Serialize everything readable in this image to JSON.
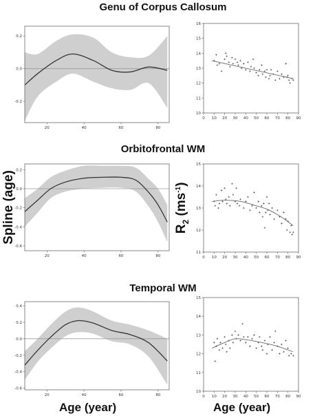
{
  "titles": [
    "Genu of Corpus Callosum",
    "Orbitofrontal WM",
    "Temporal WM"
  ],
  "ylabel_left": "Spline  (age)",
  "ylabel_right_base": "R",
  "ylabel_right_sub": "2",
  "ylabel_right_unit_open": " (ms",
  "ylabel_right_unit_sup": "-1",
  "ylabel_right_unit_close": ")",
  "xlabel_left": "Age (year)",
  "xlabel_right": "Age (year)",
  "colors": {
    "band": "#cfcfcf",
    "curve": "#333333",
    "refline": "#9a9a9a",
    "points": "#555555"
  },
  "chart_data": [
    {
      "type": "line",
      "panel": "spline",
      "xlim": [
        8,
        86
      ],
      "ylim": [
        -0.33,
        0.26
      ],
      "xticks": [
        20,
        40,
        60,
        80
      ],
      "yticks": [
        -0.2,
        0.0,
        0.2
      ],
      "ytick_labels": [
        "-0.2",
        "0.0",
        "0.2"
      ],
      "reference_y": 0,
      "x": [
        8,
        15,
        25,
        34,
        45,
        55,
        65,
        75,
        85
      ],
      "y": [
        -0.1,
        -0.03,
        0.05,
        0.09,
        0.05,
        -0.01,
        -0.02,
        0.01,
        -0.01
      ],
      "upper": [
        0.1,
        0.09,
        0.17,
        0.21,
        0.19,
        0.1,
        0.07,
        0.08,
        0.2
      ],
      "lower": [
        -0.32,
        -0.17,
        -0.08,
        -0.03,
        -0.08,
        -0.12,
        -0.13,
        -0.09,
        -0.24
      ]
    },
    {
      "type": "scatter",
      "panel": "r2",
      "xlim": [
        0,
        90
      ],
      "ylim": [
        10,
        16
      ],
      "xticks": [
        0,
        10,
        20,
        30,
        40,
        50,
        60,
        70,
        80,
        90
      ],
      "yticks": [
        10,
        11,
        12,
        13,
        14,
        15,
        16
      ],
      "fit_x": [
        8,
        85
      ],
      "fit_y": [
        13.5,
        12.3
      ],
      "points": [
        [
          10,
          13.5
        ],
        [
          12,
          13.9
        ],
        [
          13,
          13.2
        ],
        [
          15,
          13.3
        ],
        [
          17,
          12.8
        ],
        [
          20,
          13.6
        ],
        [
          21,
          14.0
        ],
        [
          22,
          13.8
        ],
        [
          24,
          13.4
        ],
        [
          25,
          13.1
        ],
        [
          27,
          13.7
        ],
        [
          28,
          13.3
        ],
        [
          30,
          13.6
        ],
        [
          32,
          13.4
        ],
        [
          33,
          13.2
        ],
        [
          35,
          13.5
        ],
        [
          36,
          13.0
        ],
        [
          38,
          13.3
        ],
        [
          40,
          12.9
        ],
        [
          42,
          13.4
        ],
        [
          44,
          12.8
        ],
        [
          45,
          13.1
        ],
        [
          47,
          13.6
        ],
        [
          48,
          13.0
        ],
        [
          50,
          12.7
        ],
        [
          52,
          12.5
        ],
        [
          53,
          12.9
        ],
        [
          55,
          13.2
        ],
        [
          56,
          12.6
        ],
        [
          58,
          12.8
        ],
        [
          59,
          12.4
        ],
        [
          60,
          12.9
        ],
        [
          62,
          12.3
        ],
        [
          63,
          12.5
        ],
        [
          64,
          12.9
        ],
        [
          66,
          12.6
        ],
        [
          68,
          12.2
        ],
        [
          70,
          12.8
        ],
        [
          72,
          12.3
        ],
        [
          74,
          12.6
        ],
        [
          76,
          12.4
        ],
        [
          78,
          13.3
        ],
        [
          79,
          12.4
        ],
        [
          80,
          12.5
        ],
        [
          81,
          12.2
        ],
        [
          82,
          12.0
        ],
        [
          84,
          12.3
        ],
        [
          85,
          12.2
        ]
      ]
    },
    {
      "type": "line",
      "panel": "spline",
      "xlim": [
        8,
        86
      ],
      "ylim": [
        -0.65,
        0.26
      ],
      "xticks": [
        20,
        40,
        60,
        80
      ],
      "yticks": [
        -0.6,
        -0.4,
        -0.2,
        0.0,
        0.2
      ],
      "ytick_labels": [
        "-0.6",
        "-0.4",
        "-0.2",
        "0.0",
        "0.2"
      ],
      "reference_y": 0,
      "x": [
        8,
        15,
        22,
        30,
        40,
        50,
        60,
        68,
        75,
        80,
        85
      ],
      "y": [
        -0.24,
        -0.12,
        0.0,
        0.07,
        0.11,
        0.12,
        0.12,
        0.09,
        -0.04,
        -0.17,
        -0.35
      ],
      "upper": [
        -0.1,
        0.0,
        0.12,
        0.19,
        0.24,
        0.24,
        0.24,
        0.22,
        0.1,
        0.0,
        -0.17
      ],
      "lower": [
        -0.4,
        -0.25,
        -0.1,
        -0.03,
        0.0,
        0.01,
        0.01,
        -0.03,
        -0.19,
        -0.35,
        -0.56
      ]
    },
    {
      "type": "scatter",
      "panel": "r2",
      "xlim": [
        0,
        90
      ],
      "ylim": [
        11,
        15
      ],
      "xticks": [
        0,
        10,
        20,
        30,
        40,
        50,
        60,
        70,
        80,
        90
      ],
      "yticks": [
        11,
        12,
        13,
        14,
        15
      ],
      "fit_x": [
        8,
        85
      ],
      "fit_y_curve": [
        [
          8,
          13.3
        ],
        [
          20,
          13.35
        ],
        [
          35,
          13.3
        ],
        [
          50,
          13.1
        ],
        [
          60,
          12.95
        ],
        [
          70,
          12.7
        ],
        [
          78,
          12.45
        ],
        [
          85,
          12.2
        ]
      ],
      "points": [
        [
          10,
          13.3
        ],
        [
          11,
          13.1
        ],
        [
          12,
          13.6
        ],
        [
          14,
          13.0
        ],
        [
          15,
          13.2
        ],
        [
          17,
          13.8
        ],
        [
          18,
          13.3
        ],
        [
          20,
          13.9
        ],
        [
          21,
          13.4
        ],
        [
          22,
          13.2
        ],
        [
          24,
          13.5
        ],
        [
          25,
          13.1
        ],
        [
          27,
          14.1
        ],
        [
          28,
          13.6
        ],
        [
          30,
          13.3
        ],
        [
          31,
          13.9
        ],
        [
          32,
          13.2
        ],
        [
          34,
          13.1
        ],
        [
          35,
          13.4
        ],
        [
          38,
          13.0
        ],
        [
          40,
          13.3
        ],
        [
          42,
          13.5
        ],
        [
          44,
          12.9
        ],
        [
          46,
          13.1
        ],
        [
          48,
          13.7
        ],
        [
          50,
          13.0
        ],
        [
          52,
          13.3
        ],
        [
          53,
          12.8
        ],
        [
          55,
          13.1
        ],
        [
          56,
          12.6
        ],
        [
          57,
          13.2
        ],
        [
          58,
          12.1
        ],
        [
          59,
          12.8
        ],
        [
          60,
          13.5
        ],
        [
          61,
          12.9
        ],
        [
          62,
          13.2
        ],
        [
          63,
          12.7
        ],
        [
          65,
          13.0
        ],
        [
          67,
          12.5
        ],
        [
          70,
          12.9
        ],
        [
          72,
          12.6
        ],
        [
          74,
          12.3
        ],
        [
          76,
          12.8
        ],
        [
          78,
          12.5
        ],
        [
          79,
          12.0
        ],
        [
          80,
          12.4
        ],
        [
          82,
          11.9
        ],
        [
          83,
          12.2
        ],
        [
          84,
          11.8
        ],
        [
          85,
          11.9
        ]
      ]
    },
    {
      "type": "line",
      "panel": "spline",
      "xlim": [
        8,
        86
      ],
      "ylim": [
        -0.62,
        0.45
      ],
      "xticks": [
        20,
        40,
        60,
        80
      ],
      "yticks": [
        -0.6,
        -0.4,
        -0.2,
        0.0,
        0.2,
        0.4
      ],
      "ytick_labels": [
        "-0.6",
        "-0.4",
        "-0.2",
        "0.0",
        "0.2",
        "0.4"
      ],
      "reference_y": 0,
      "x": [
        8,
        15,
        22,
        30,
        37,
        45,
        55,
        65,
        75,
        85
      ],
      "y": [
        -0.32,
        -0.14,
        0.02,
        0.17,
        0.22,
        0.19,
        0.1,
        0.05,
        -0.05,
        -0.27
      ],
      "upper": [
        -0.15,
        0.0,
        0.17,
        0.33,
        0.38,
        0.33,
        0.22,
        0.17,
        0.1,
        0.0
      ],
      "lower": [
        -0.5,
        -0.28,
        -0.12,
        0.03,
        0.08,
        0.06,
        -0.03,
        -0.07,
        -0.22,
        -0.56
      ]
    },
    {
      "type": "scatter",
      "panel": "r2",
      "xlim": [
        0,
        90
      ],
      "ylim": [
        10,
        15
      ],
      "xticks": [
        0,
        10,
        20,
        30,
        40,
        50,
        60,
        70,
        80,
        90
      ],
      "yticks": [
        10,
        11,
        12,
        13,
        14,
        15
      ],
      "fit_y_curve": [
        [
          8,
          12.3
        ],
        [
          20,
          12.6
        ],
        [
          30,
          12.8
        ],
        [
          40,
          12.75
        ],
        [
          55,
          12.6
        ],
        [
          70,
          12.4
        ],
        [
          85,
          12.1
        ]
      ],
      "points": [
        [
          10,
          12.6
        ],
        [
          11,
          11.6
        ],
        [
          12,
          12.4
        ],
        [
          13,
          12.8
        ],
        [
          15,
          12.2
        ],
        [
          16,
          12.6
        ],
        [
          18,
          12.3
        ],
        [
          20,
          12.9
        ],
        [
          21,
          12.5
        ],
        [
          22,
          12.1
        ],
        [
          24,
          12.7
        ],
        [
          25,
          12.3
        ],
        [
          27,
          13.0
        ],
        [
          28,
          12.6
        ],
        [
          30,
          13.2
        ],
        [
          31,
          12.8
        ],
        [
          33,
          13.0
        ],
        [
          35,
          12.7
        ],
        [
          37,
          13.6
        ],
        [
          38,
          12.9
        ],
        [
          40,
          12.6
        ],
        [
          42,
          12.9
        ],
        [
          44,
          12.4
        ],
        [
          46,
          12.8
        ],
        [
          48,
          13.0
        ],
        [
          50,
          12.3
        ],
        [
          52,
          12.6
        ],
        [
          53,
          12.9
        ],
        [
          55,
          12.4
        ],
        [
          56,
          12.2
        ],
        [
          58,
          12.7
        ],
        [
          60,
          12.0
        ],
        [
          61,
          12.5
        ],
        [
          63,
          12.9
        ],
        [
          65,
          12.2
        ],
        [
          67,
          12.6
        ],
        [
          68,
          13.2
        ],
        [
          70,
          12.4
        ],
        [
          72,
          12.0
        ],
        [
          74,
          12.5
        ],
        [
          76,
          12.1
        ],
        [
          78,
          12.7
        ],
        [
          80,
          12.3
        ],
        [
          81,
          11.9
        ],
        [
          83,
          12.0
        ],
        [
          85,
          11.9
        ]
      ]
    }
  ]
}
